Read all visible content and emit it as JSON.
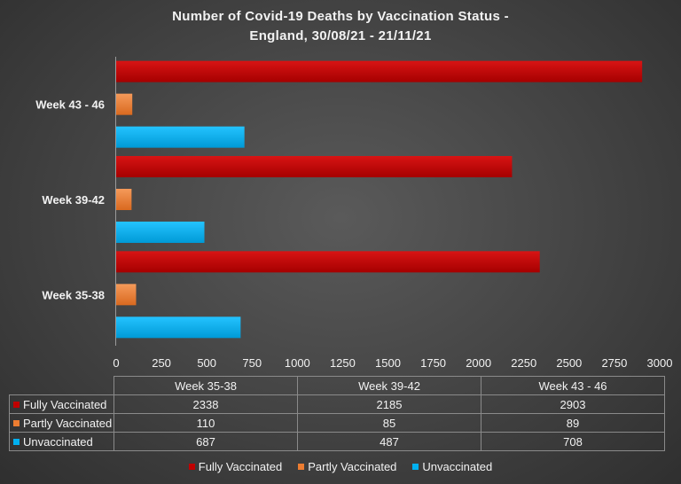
{
  "chart_data": {
    "type": "bar",
    "orientation": "horizontal",
    "title": "Number of Covid-19 Deaths by Vaccination Status -",
    "subtitle": "England, 30/08/21 - 21/11/21",
    "categories": [
      "Week 35-38",
      "Week 39-42",
      "Week 43 - 46"
    ],
    "series": [
      {
        "name": "Fully Vaccinated",
        "color": "#c00000",
        "values": [
          2338,
          2185,
          2903
        ]
      },
      {
        "name": "Partly Vaccinated",
        "color": "#ed7d31",
        "values": [
          110,
          85,
          89
        ]
      },
      {
        "name": "Unvaccinated",
        "color": "#00b0f0",
        "values": [
          687,
          487,
          708
        ]
      }
    ],
    "xlim": [
      0,
      3000
    ],
    "xticks": [
      0,
      250,
      500,
      750,
      1000,
      1250,
      1500,
      1750,
      2000,
      2250,
      2500,
      2750,
      3000
    ],
    "grid": false,
    "legend": "bottom",
    "data_table": true
  }
}
